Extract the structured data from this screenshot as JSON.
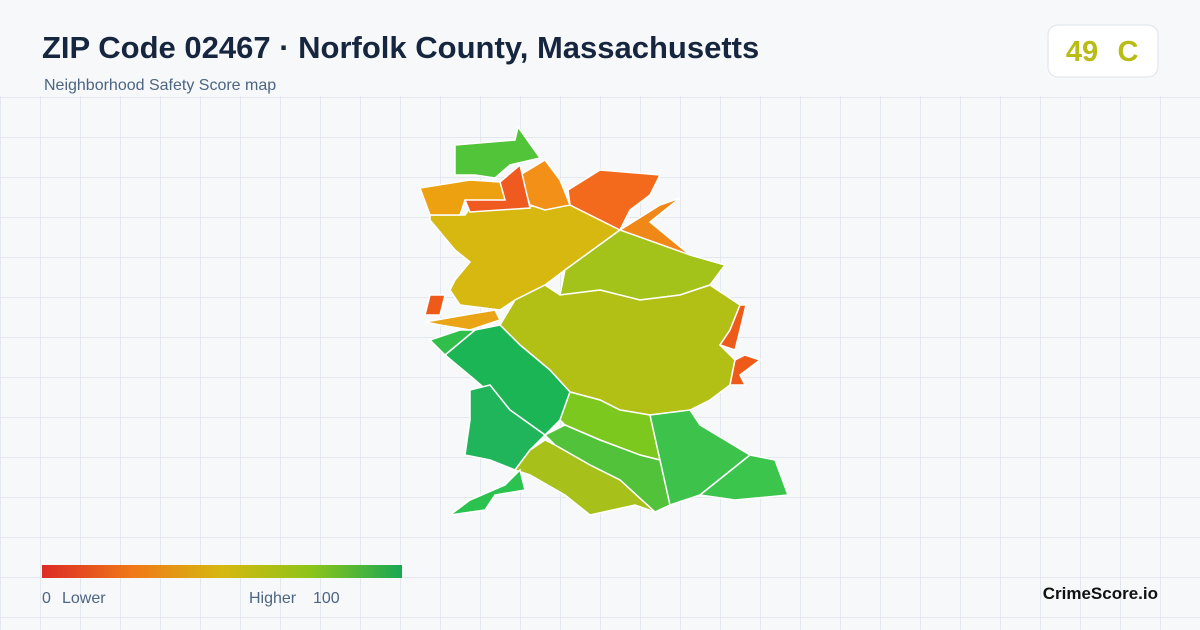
{
  "header": {
    "title": "ZIP Code 02467 · Norfolk County, Massachusetts",
    "subtitle": "Neighborhood Safety Score map"
  },
  "score": {
    "value": 49,
    "grade": "C"
  },
  "legend": {
    "min": 0,
    "min_label": "Lower",
    "max_label": "Higher",
    "max": 100
  },
  "brand": "CrimeScore.io"
}
